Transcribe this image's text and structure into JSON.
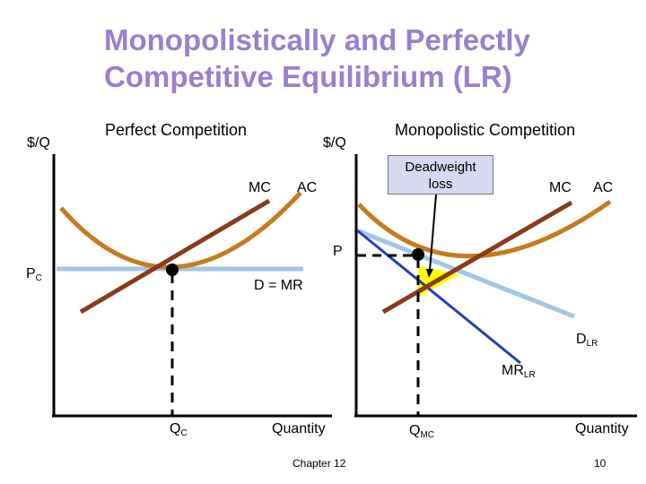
{
  "slide": {
    "title_line1": "Monopolistically and Perfectly",
    "title_line2": "Competitive Equilibrium (LR)",
    "footer_chapter": "Chapter 12",
    "page_number": "10",
    "title_color": "#9b7fcf"
  },
  "left_panel": {
    "heading": "Perfect Competition",
    "y_axis_label": "$/Q",
    "x_axis_label": "Quantity",
    "mc_label": "MC",
    "ac_label": "AC",
    "price_label": "P",
    "price_sub": "C",
    "demand_label": "D = MR",
    "quantity_label": "Q",
    "quantity_sub": "C"
  },
  "right_panel": {
    "heading": "Monopolistic Competition",
    "y_axis_label": "$/Q",
    "x_axis_label": "Quantity",
    "mc_label": "MC",
    "ac_label": "AC",
    "price_label": "P",
    "demand_label": "D",
    "demand_sub": "LR",
    "mr_label": "MR",
    "mr_sub": "LR",
    "quantity_label": "Q",
    "quantity_sub": "MC",
    "deadweight_line1": "Deadweight",
    "deadweight_line2": "loss"
  },
  "colors": {
    "ac_curve": "#c87a1e",
    "mc_curve": "#8b3a1a",
    "demand_light": "#9fc7ea",
    "mr_line": "#1f3fbf",
    "deadweight_fill": "#ffff00"
  }
}
